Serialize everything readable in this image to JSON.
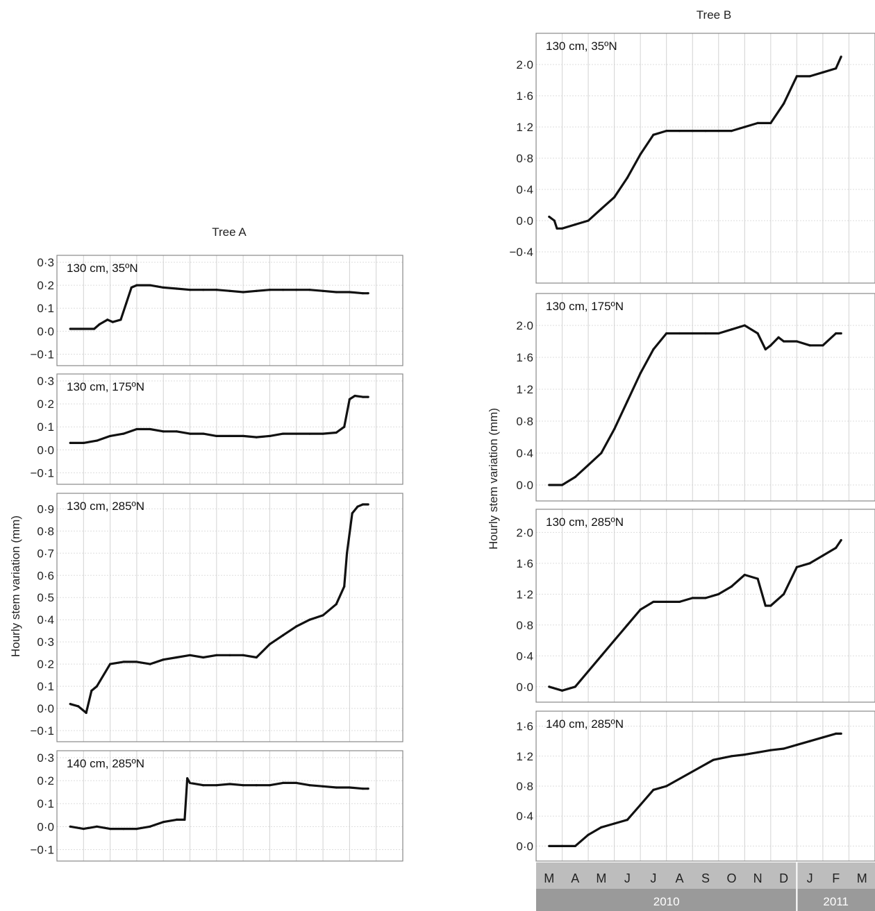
{
  "figure": {
    "ylabel": "Hourly stem variation (mm)",
    "line_color": "#111111",
    "axis_bar_color": "#9a9a9a"
  },
  "chart_data": [
    {
      "type": "line",
      "group": "Tree A",
      "title": "Tree A",
      "label": "130 cm, 35ºN",
      "ylabel": "Hourly stem variation (mm)",
      "yticks": [
        "0·3",
        "0·2",
        "0·1",
        "0·0",
        "−0·1"
      ],
      "ytick_values": [
        0.3,
        0.2,
        0.1,
        0.0,
        -0.1
      ],
      "ylim": [
        -0.15,
        0.33
      ],
      "xticks": [
        "M",
        "A",
        "M",
        "J",
        "J",
        "A",
        "S",
        "O",
        "N",
        "D",
        "J",
        "F",
        "M"
      ],
      "years": [
        "2010",
        "2011"
      ],
      "x": [
        0,
        0.4,
        0.9,
        1.1,
        1.4,
        1.6,
        1.9,
        2.1,
        2.3,
        2.5,
        3.0,
        3.5,
        4.0,
        4.5,
        5.0,
        5.5,
        6.0,
        6.5,
        7.0,
        7.5,
        8.0,
        8.5,
        9.0,
        9.5,
        10.0,
        10.5,
        11.0,
        11.2
      ],
      "y": [
        0.01,
        0.01,
        0.01,
        0.03,
        0.05,
        0.04,
        0.05,
        0.12,
        0.19,
        0.2,
        0.2,
        0.19,
        0.185,
        0.18,
        0.18,
        0.18,
        0.175,
        0.17,
        0.175,
        0.18,
        0.18,
        0.18,
        0.18,
        0.175,
        0.17,
        0.17,
        0.165,
        0.165
      ]
    },
    {
      "type": "line",
      "group": "Tree A",
      "label": "130 cm, 175ºN",
      "yticks": [
        "0·3",
        "0·2",
        "0·1",
        "0·0",
        "−0·1"
      ],
      "ytick_values": [
        0.3,
        0.2,
        0.1,
        0.0,
        -0.1
      ],
      "ylim": [
        -0.15,
        0.33
      ],
      "x": [
        0,
        0.5,
        1.0,
        1.5,
        2.0,
        2.5,
        3.0,
        3.5,
        4.0,
        4.5,
        5.0,
        5.5,
        6.0,
        6.5,
        7.0,
        7.5,
        8.0,
        8.5,
        9.0,
        9.5,
        10.0,
        10.3,
        10.5,
        10.7,
        11.0,
        11.2
      ],
      "y": [
        0.03,
        0.03,
        0.04,
        0.06,
        0.07,
        0.09,
        0.09,
        0.08,
        0.08,
        0.07,
        0.07,
        0.06,
        0.06,
        0.06,
        0.055,
        0.06,
        0.07,
        0.07,
        0.07,
        0.07,
        0.075,
        0.1,
        0.22,
        0.235,
        0.23,
        0.23
      ]
    },
    {
      "type": "line",
      "group": "Tree A",
      "label": "130 cm, 285ºN",
      "yticks": [
        "0·9",
        "0·8",
        "0·7",
        "0·6",
        "0·5",
        "0·4",
        "0·3",
        "0·2",
        "0·1",
        "0·0",
        "−0·1"
      ],
      "ytick_values": [
        0.9,
        0.8,
        0.7,
        0.6,
        0.5,
        0.4,
        0.3,
        0.2,
        0.1,
        0.0,
        -0.1
      ],
      "ylim": [
        -0.15,
        0.97
      ],
      "x": [
        0,
        0.3,
        0.6,
        0.8,
        1.0,
        1.5,
        2.0,
        2.5,
        3.0,
        3.5,
        4.0,
        4.5,
        5.0,
        5.5,
        6.0,
        6.5,
        7.0,
        7.5,
        8.0,
        8.5,
        9.0,
        9.5,
        10.0,
        10.3,
        10.4,
        10.6,
        10.8,
        11.0,
        11.2
      ],
      "y": [
        0.02,
        0.01,
        -0.02,
        0.08,
        0.1,
        0.2,
        0.21,
        0.21,
        0.2,
        0.22,
        0.23,
        0.24,
        0.23,
        0.24,
        0.24,
        0.24,
        0.23,
        0.29,
        0.33,
        0.37,
        0.4,
        0.42,
        0.47,
        0.55,
        0.7,
        0.88,
        0.91,
        0.92,
        0.92
      ]
    },
    {
      "type": "line",
      "group": "Tree A",
      "label": "140 cm, 285ºN",
      "yticks": [
        "0·3",
        "0·2",
        "0·1",
        "0·0",
        "−0·1"
      ],
      "ytick_values": [
        0.3,
        0.2,
        0.1,
        0.0,
        -0.1
      ],
      "ylim": [
        -0.15,
        0.33
      ],
      "x": [
        0,
        0.5,
        1.0,
        1.5,
        2.0,
        2.5,
        3.0,
        3.5,
        4.0,
        4.3,
        4.4,
        4.5,
        5.0,
        5.5,
        6.0,
        6.5,
        7.0,
        7.5,
        8.0,
        8.5,
        9.0,
        9.5,
        10.0,
        10.5,
        11.0,
        11.2
      ],
      "y": [
        0.0,
        -0.01,
        0.0,
        -0.01,
        -0.01,
        -0.01,
        0.0,
        0.02,
        0.03,
        0.03,
        0.21,
        0.19,
        0.18,
        0.18,
        0.185,
        0.18,
        0.18,
        0.18,
        0.19,
        0.19,
        0.18,
        0.175,
        0.17,
        0.17,
        0.165,
        0.165
      ]
    },
    {
      "type": "line",
      "group": "Tree B",
      "title": "Tree B",
      "label": "130 cm, 35ºN",
      "yticks": [
        "2·0",
        "1·6",
        "1·2",
        "0·8",
        "0·4",
        "0·0",
        "−0·4"
      ],
      "ytick_values": [
        2.0,
        1.6,
        1.2,
        0.8,
        0.4,
        0.0,
        -0.4
      ],
      "ylim": [
        -0.8,
        2.4
      ],
      "x": [
        0,
        0.2,
        0.3,
        0.5,
        1.0,
        1.5,
        2.0,
        2.5,
        3.0,
        3.5,
        4.0,
        4.5,
        5.0,
        5.5,
        6.0,
        6.5,
        7.0,
        7.5,
        8.0,
        8.5,
        9.0,
        9.5,
        10.0,
        10.5,
        11.0,
        11.2
      ],
      "y": [
        0.05,
        0.0,
        -0.1,
        -0.1,
        -0.05,
        0.0,
        0.15,
        0.3,
        0.55,
        0.85,
        1.1,
        1.15,
        1.15,
        1.15,
        1.15,
        1.15,
        1.15,
        1.2,
        1.25,
        1.25,
        1.5,
        1.85,
        1.85,
        1.9,
        1.95,
        2.1
      ]
    },
    {
      "type": "line",
      "group": "Tree B",
      "label": "130 cm, 175ºN",
      "yticks": [
        "2·0",
        "1·6",
        "1·2",
        "0·8",
        "0·4",
        "0·0"
      ],
      "ytick_values": [
        2.0,
        1.6,
        1.2,
        0.8,
        0.4,
        0.0
      ],
      "ylim": [
        -0.2,
        2.4
      ],
      "x": [
        0,
        0.5,
        1.0,
        1.5,
        2.0,
        2.5,
        3.0,
        3.5,
        4.0,
        4.5,
        5.0,
        5.5,
        6.0,
        6.5,
        7.0,
        7.5,
        8.0,
        8.3,
        8.5,
        8.8,
        9.0,
        9.5,
        10.0,
        10.5,
        11.0,
        11.2
      ],
      "y": [
        0.0,
        0.0,
        0.1,
        0.25,
        0.4,
        0.7,
        1.05,
        1.4,
        1.7,
        1.9,
        1.9,
        1.9,
        1.9,
        1.9,
        1.95,
        2.0,
        1.9,
        1.7,
        1.75,
        1.85,
        1.8,
        1.8,
        1.75,
        1.75,
        1.9,
        1.9
      ]
    },
    {
      "type": "line",
      "group": "Tree B",
      "label": "130 cm, 285ºN",
      "yticks": [
        "2·0",
        "1·6",
        "1·2",
        "0·8",
        "0·4",
        "0·0"
      ],
      "ytick_values": [
        2.0,
        1.6,
        1.2,
        0.8,
        0.4,
        0.0
      ],
      "ylim": [
        -0.2,
        2.3
      ],
      "x": [
        0,
        0.5,
        1.0,
        1.5,
        2.0,
        2.5,
        3.0,
        3.5,
        4.0,
        4.5,
        5.0,
        5.5,
        6.0,
        6.5,
        7.0,
        7.5,
        8.0,
        8.3,
        8.5,
        9.0,
        9.5,
        10.0,
        10.5,
        11.0,
        11.2
      ],
      "y": [
        0.0,
        -0.05,
        0.0,
        0.2,
        0.4,
        0.6,
        0.8,
        1.0,
        1.1,
        1.1,
        1.1,
        1.15,
        1.15,
        1.2,
        1.3,
        1.45,
        1.4,
        1.05,
        1.05,
        1.2,
        1.55,
        1.6,
        1.7,
        1.8,
        1.9
      ]
    },
    {
      "type": "line",
      "group": "Tree B",
      "label": "140 cm, 285ºN",
      "yticks": [
        "1·6",
        "1·2",
        "0·8",
        "0·4",
        "0·0"
      ],
      "ytick_values": [
        1.6,
        1.2,
        0.8,
        0.4,
        0.0
      ],
      "ylim": [
        -0.2,
        1.8
      ],
      "xticks": [
        "M",
        "A",
        "M",
        "J",
        "J",
        "A",
        "S",
        "O",
        "N",
        "D",
        "J",
        "F",
        "M"
      ],
      "years": [
        "2010",
        "2011"
      ],
      "x": [
        0,
        0.5,
        1.0,
        1.5,
        2.0,
        2.5,
        3.0,
        3.5,
        4.0,
        4.5,
        6.3,
        7.0,
        7.5,
        8.0,
        8.5,
        9.0,
        9.5,
        10.0,
        10.5,
        11.0,
        11.2
      ],
      "y": [
        0.0,
        0.0,
        0.0,
        0.15,
        0.25,
        0.3,
        0.35,
        0.55,
        0.75,
        0.8,
        1.15,
        1.2,
        1.22,
        1.25,
        1.28,
        1.3,
        1.35,
        1.4,
        1.45,
        1.5,
        1.5
      ]
    }
  ]
}
